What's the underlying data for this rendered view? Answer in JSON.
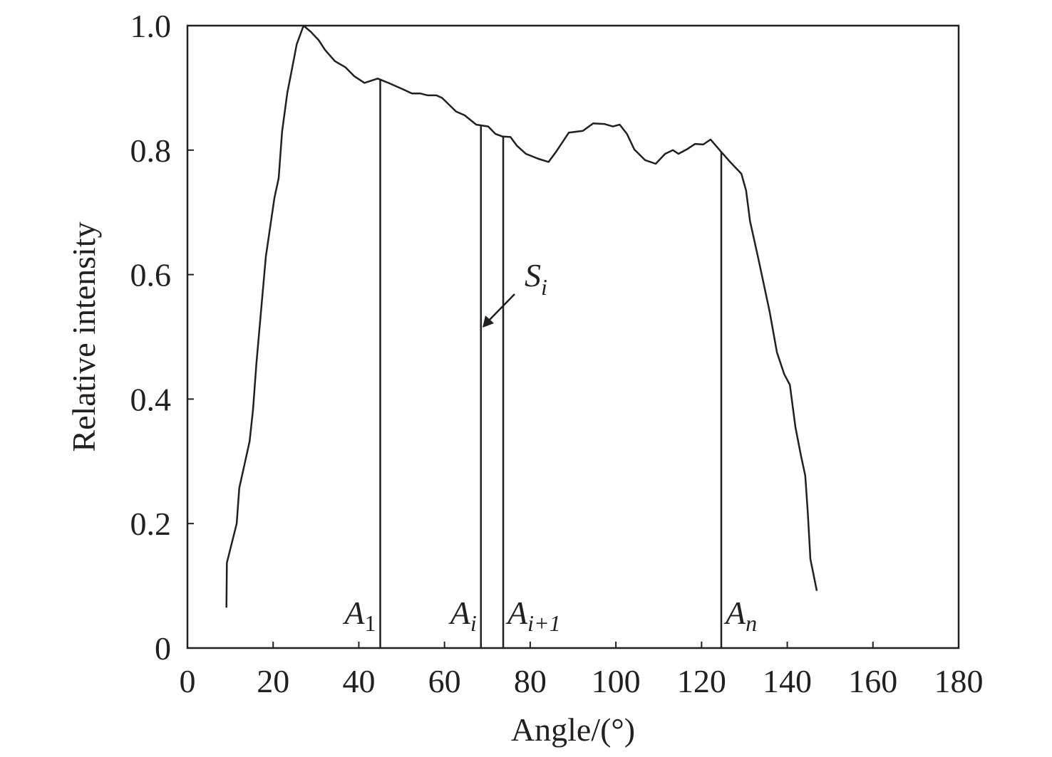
{
  "chart_data": {
    "type": "line",
    "x_label": "Angle/(°)",
    "y_label": "Relative intensity",
    "xlim": [
      0,
      180
    ],
    "xticks": [
      0,
      20,
      40,
      60,
      80,
      100,
      120,
      140,
      160,
      180
    ],
    "ylim": [
      0,
      1
    ],
    "yticks": [
      0,
      0.2,
      0.4,
      0.6,
      0.8,
      {
        "value": 1,
        "label": "1.0"
      }
    ],
    "grid": false,
    "x": [
      9.1,
      9.2,
      11.5,
      12.1,
      14.5,
      15.3,
      16.1,
      18.3,
      20.3,
      21.3,
      22.1,
      23.3,
      24.3,
      25.5,
      27.1,
      28.8,
      30.6,
      32.1,
      34.4,
      36.9,
      38.9,
      41.3,
      44.4,
      46.9,
      50.2,
      52.4,
      54.4,
      56.1,
      58.1,
      59.4,
      62.7,
      64.7,
      67.4,
      70.2,
      71.9,
      73.5,
      75.4,
      76.9,
      79.0,
      81.9,
      84.3,
      86.0,
      89.0,
      92.3,
      94.7,
      97.3,
      99.3,
      100.9,
      102.6,
      104.3,
      106.8,
      109.3,
      111.5,
      113.3,
      114.6,
      116.5,
      118.5,
      120.4,
      122.1,
      124.6,
      126.8,
      129.3,
      130.4,
      131.3,
      133.3,
      135.9,
      137.6,
      139.3,
      140.6,
      141.9,
      143.2,
      144.2,
      144.8,
      145.4,
      146.9
    ],
    "series": [
      {
        "color": "#231f20",
        "values": [
          0.065,
          0.137,
          0.2,
          0.257,
          0.332,
          0.383,
          0.458,
          0.629,
          0.723,
          0.755,
          0.83,
          0.892,
          0.927,
          0.97,
          1.0,
          0.99,
          0.977,
          0.961,
          0.943,
          0.933,
          0.919,
          0.908,
          0.915,
          0.908,
          0.898,
          0.891,
          0.891,
          0.888,
          0.888,
          0.884,
          0.862,
          0.856,
          0.841,
          0.838,
          0.826,
          0.822,
          0.821,
          0.807,
          0.794,
          0.786,
          0.781,
          0.797,
          0.828,
          0.831,
          0.843,
          0.842,
          0.838,
          0.841,
          0.826,
          0.801,
          0.784,
          0.778,
          0.794,
          0.8,
          0.794,
          0.801,
          0.81,
          0.809,
          0.817,
          0.797,
          0.78,
          0.762,
          0.735,
          0.686,
          0.624,
          0.54,
          0.475,
          0.44,
          0.423,
          0.355,
          0.309,
          0.277,
          0.217,
          0.143,
          0.092
        ]
      }
    ],
    "markers": [
      {
        "text": "A",
        "sub": "1",
        "x": 45
      },
      {
        "text": "A",
        "sub": "i",
        "x": 68.5
      },
      {
        "text": "A",
        "sub": "i+1",
        "x": 73.7
      },
      {
        "text": "A",
        "sub": "n",
        "x": 124.6
      }
    ],
    "annotation": {
      "text": "S",
      "sub": "i"
    }
  }
}
